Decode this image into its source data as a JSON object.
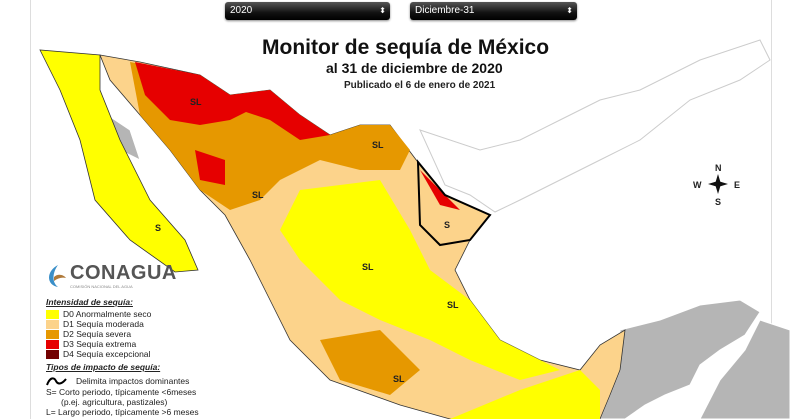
{
  "controls": {
    "year": "2020",
    "date": "Diciembre-31"
  },
  "title": "Monitor de sequía de México",
  "subtitle": "al 31 de diciembre de 2020",
  "published": "Publicado el 6 de enero de 2021",
  "logo": {
    "name": "CONAGUA",
    "sub": "COMISIÓN NACIONAL DEL AGUA"
  },
  "legend": {
    "intensity_title": "Intensidad de sequía:",
    "items": [
      {
        "label": "D0 Anormalmente seco",
        "color": "#ffff00"
      },
      {
        "label": "D1 Sequía moderada",
        "color": "#fcd38b"
      },
      {
        "label": "D2 Sequía severa",
        "color": "#e69800"
      },
      {
        "label": "D3 Sequía extrema",
        "color": "#e60000"
      },
      {
        "label": "D4 Sequía excepcional",
        "color": "#730000"
      }
    ],
    "impact_title": "Tipos de impacto de sequía:",
    "impact_line": "Delimita impactos dominantes",
    "short": "S= Corto periodo, típicamente <6meses",
    "short_ex": "(p.ej. agricultura, pastizales)",
    "long": "L= Largo periodo, típicamente >6 meses"
  },
  "compass": {
    "n": "N",
    "s": "S",
    "e": "E",
    "w": "W"
  },
  "map_labels": [
    "SL",
    "SL",
    "SL",
    "S",
    "S",
    "SL",
    "SL",
    "SL"
  ]
}
